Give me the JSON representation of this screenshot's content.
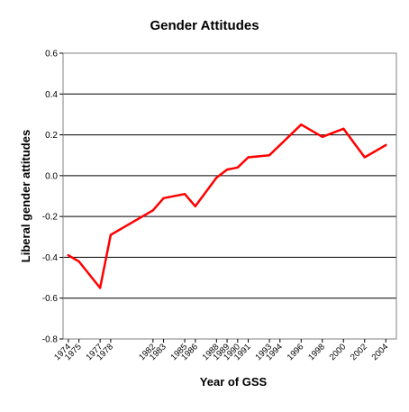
{
  "chart_data": {
    "type": "line",
    "title": "Gender Attitudes",
    "xlabel": "Year of GSS",
    "ylabel": "Liberal gender attitudes",
    "ylim": [
      -0.8,
      0.6
    ],
    "yticks": [
      "0.6",
      "0.4",
      "0.2",
      "0.0",
      "-0.2",
      "-0.4",
      "-0.6",
      "-0.8"
    ],
    "xticks": [
      "1974",
      "1975",
      "1977",
      "1978",
      "1982",
      "1983",
      "1985",
      "1986",
      "1988",
      "1989",
      "1990",
      "1991",
      "1993",
      "1994",
      "1996",
      "1998",
      "2000",
      "2002",
      "2004"
    ],
    "grid": true,
    "line_color": "#ff0000",
    "series": [
      {
        "x": [
          1974,
          1975,
          1977,
          1978,
          1982,
          1983,
          1985,
          1986,
          1988,
          1989,
          1990,
          1991,
          1993,
          1994,
          1996,
          1998,
          2000,
          2002,
          2004
        ],
        "values": [
          -0.39,
          -0.42,
          -0.55,
          -0.29,
          -0.17,
          -0.11,
          -0.09,
          -0.15,
          -0.01,
          0.03,
          0.04,
          0.09,
          0.1,
          0.15,
          0.25,
          0.19,
          0.23,
          0.09,
          0.15
        ]
      }
    ]
  }
}
